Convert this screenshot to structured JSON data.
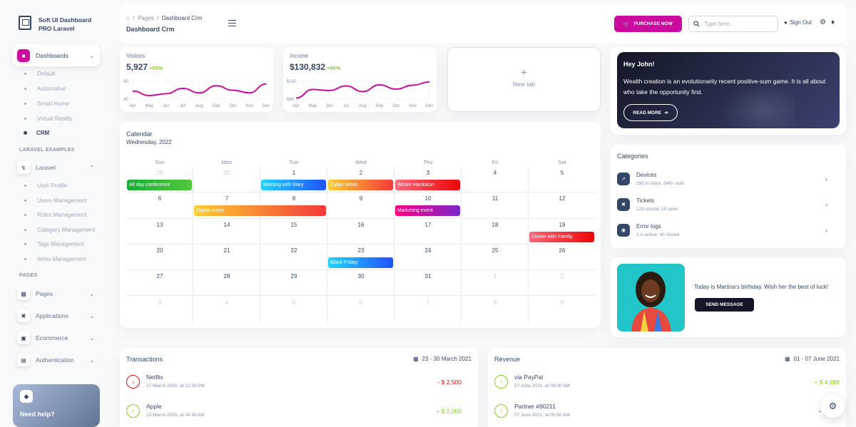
{
  "sidebar": {
    "brand": "Soft UI Dashboard PRO Laravel",
    "dashboards_label": "Dashboards",
    "dashboard_items": [
      "Default",
      "Automotive",
      "Smart Home",
      "Virtual Reality",
      "CRM"
    ],
    "active_item": "CRM",
    "laravel_examples_heading": "LARAVEL EXAMPLES",
    "laravel_label": "Laravel",
    "laravel_items": [
      "User Profile",
      "Users Management",
      "Roles Management",
      "Category Management",
      "Tags Management",
      "Items Management"
    ],
    "pages_heading": "PAGES",
    "sections": [
      "Pages",
      "Applications",
      "Ecommerce",
      "Authentication"
    ],
    "help": "Need help?"
  },
  "topnav": {
    "breadcrumb_root": "Pages",
    "breadcrumb_current": "Dashboard Crm",
    "title": "Dashboard Crm",
    "purchase_label": "PURCHASE NOW",
    "search_placeholder": "Type here...",
    "signout_label": "Sign Out"
  },
  "visitors": {
    "title": "Visitors",
    "value": "5,927",
    "change": "+55%",
    "chart_data": {
      "type": "line",
      "categories": [
        "Apr",
        "May",
        "Jun",
        "Jul",
        "Aug",
        "Sep",
        "Oct",
        "Nov",
        "Dec"
      ],
      "values": [
        49,
        44,
        46,
        52,
        47,
        55,
        50,
        47,
        57
      ],
      "yticks": [
        "50",
        "40"
      ],
      "color": "#cb0c9f"
    }
  },
  "income": {
    "title": "Income",
    "value": "$130,832",
    "change": "+90%",
    "chart_data": {
      "type": "line",
      "categories": [
        "Apr",
        "May",
        "Jun",
        "Jul",
        "Aug",
        "Sep",
        "Oct",
        "Nov",
        "Dec"
      ],
      "values": [
        58,
        82,
        79,
        92,
        76,
        95,
        83,
        94,
        103
      ],
      "yticks": [
        "$100",
        "$60"
      ],
      "color": "#cb0c9f"
    }
  },
  "new_tab": {
    "label": "New tab"
  },
  "hero": {
    "title": "Hey John!",
    "text": "Wealth creation is an evolutionarily recent positive-sum game. It is all about who take the opportunity first.",
    "button": "READ MORE"
  },
  "calendar": {
    "title": "Calendar",
    "subtitle": "Wednesday, 2022",
    "days": [
      "Sun",
      "Mon",
      "Tue",
      "Wed",
      "Thu",
      "Fri",
      "Sat"
    ],
    "weeks": [
      [
        "29",
        "30",
        "1",
        "2",
        "3",
        "4",
        "5"
      ],
      [
        "6",
        "7",
        "8",
        "9",
        "10",
        "11",
        "12"
      ],
      [
        "13",
        "14",
        "15",
        "16",
        "17",
        "18",
        "19"
      ],
      [
        "20",
        "21",
        "22",
        "23",
        "24",
        "25",
        "26"
      ],
      [
        "27",
        "28",
        "29",
        "30",
        "31",
        "1",
        "2"
      ],
      [
        "3",
        "4",
        "5",
        "6",
        "7",
        "8",
        "9"
      ]
    ],
    "events": [
      {
        "title": "All day conference",
        "row": 0,
        "col": 0,
        "span": 1,
        "color": "green"
      },
      {
        "title": "Meeting with Mary",
        "row": 0,
        "col": 2,
        "span": 1,
        "color": "blue"
      },
      {
        "title": "Cyber Week",
        "row": 0,
        "col": 3,
        "span": 1,
        "color": "orange"
      },
      {
        "title": "Winter Hackaton",
        "row": 0,
        "col": 4,
        "span": 1,
        "color": "red"
      },
      {
        "title": "Digital event",
        "row": 1,
        "col": 1,
        "span": 2,
        "color": "orange"
      },
      {
        "title": "Marketing event",
        "row": 1,
        "col": 4,
        "span": 1,
        "color": "purple"
      },
      {
        "title": "Dinner with Family",
        "row": 2,
        "col": 6,
        "span": 1,
        "color": "red"
      },
      {
        "title": "Black Friday",
        "row": 3,
        "col": 3,
        "span": 1,
        "color": "blue"
      }
    ]
  },
  "categories": {
    "title": "Categories",
    "items": [
      {
        "name": "Devices",
        "desc": "250 in stock, 346+ sold"
      },
      {
        "name": "Tickets",
        "desc": "123 closed, 15 open"
      },
      {
        "name": "Error logs",
        "desc": "1 is active, 40 closed"
      }
    ]
  },
  "birthday": {
    "text": "Today is Martina's birthday. Wish her the best of luck!",
    "button": "SEND MESSAGE"
  },
  "transactions": {
    "title": "Transactions",
    "range": "23 - 30 March 2021",
    "items": [
      {
        "name": "Netflix",
        "date": "27 March 2020, at 12:30 PM",
        "amount": "- $ 2,500",
        "type": "out"
      },
      {
        "name": "Apple",
        "date": "23 March 2020, at 04:30 AM",
        "amount": "+ $ 2,000",
        "type": "in"
      }
    ]
  },
  "revenue": {
    "title": "Revenue",
    "range": "01 - 07 June 2021",
    "items": [
      {
        "name": "via PayPal",
        "date": "07 June 2021, at 09:00 AM",
        "amount": "+ $ 4,999",
        "type": "in"
      },
      {
        "name": "Partner #90211",
        "date": "07 June 2021, at 05:50 AM",
        "amount": "+ $",
        "type": "in"
      }
    ]
  },
  "colors": {
    "accent": "#cb0c9f",
    "positive": "#82d616",
    "negative": "#ea0606",
    "dark": "#344767"
  }
}
